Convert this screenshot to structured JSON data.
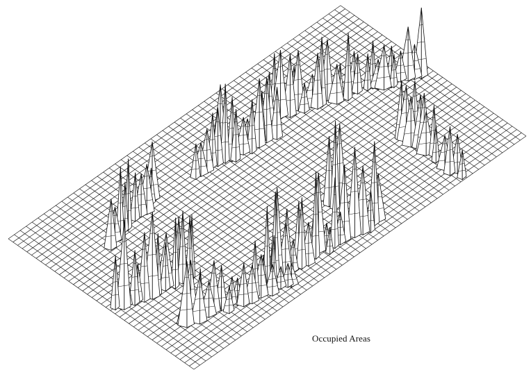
{
  "figure": {
    "caption": "Occupied Areas",
    "colors": {
      "background": "#ffffff",
      "mesh_line": "#1a1a1a",
      "peak_fill": "#ffffff",
      "peak_edge": "#111111",
      "caption_text": "#111111"
    }
  }
}
